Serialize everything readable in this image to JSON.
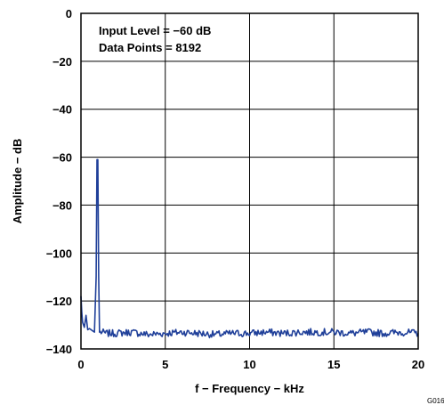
{
  "chart_data": {
    "type": "line",
    "title": "",
    "xlabel": "f − Frequency − kHz",
    "ylabel": "Amplitude − dB",
    "xlim": [
      0,
      20
    ],
    "ylim": [
      -140,
      0
    ],
    "x_ticks": [
      0,
      5,
      10,
      15,
      20
    ],
    "x_tick_labels": [
      "0",
      "5",
      "10",
      "15",
      "20"
    ],
    "y_ticks": [
      0,
      -20,
      -40,
      -60,
      -80,
      -100,
      -120,
      -140
    ],
    "y_tick_labels": [
      "0",
      "−20",
      "−40",
      "−60",
      "−80",
      "−100",
      "−120",
      "−140"
    ],
    "grid": true,
    "annotations": [
      "Input Level = −60 dB",
      "Data Points = 8192"
    ],
    "figure_id": "G016",
    "series": [
      {
        "color": "#1f3f99",
        "noise_floor_db": -133.5,
        "noise_ripple_db": 1.5,
        "x": [
          0,
          0.05,
          0.1,
          0.2,
          0.3,
          0.4,
          0.5,
          0.6,
          0.7,
          0.8,
          0.9,
          0.95,
          1.0,
          1.05,
          1.1,
          1.2,
          1.5,
          2,
          3,
          4,
          5,
          6,
          7,
          8,
          9,
          10,
          11,
          12,
          13,
          14,
          15,
          16,
          17,
          18,
          19,
          20
        ],
        "y": [
          -118,
          -125,
          -129,
          -131,
          -126,
          -132,
          -131.5,
          -132,
          -132.5,
          -133,
          -110,
          -61,
          -61,
          -110,
          -133,
          -133,
          -133.5,
          -133.5,
          -133,
          -134,
          -133.5,
          -133,
          -133.5,
          -134,
          -133.5,
          -133.5,
          -133,
          -133.5,
          -133,
          -133,
          -133,
          -133.5,
          -133,
          -133.5,
          -133,
          -133.5
        ]
      }
    ]
  }
}
